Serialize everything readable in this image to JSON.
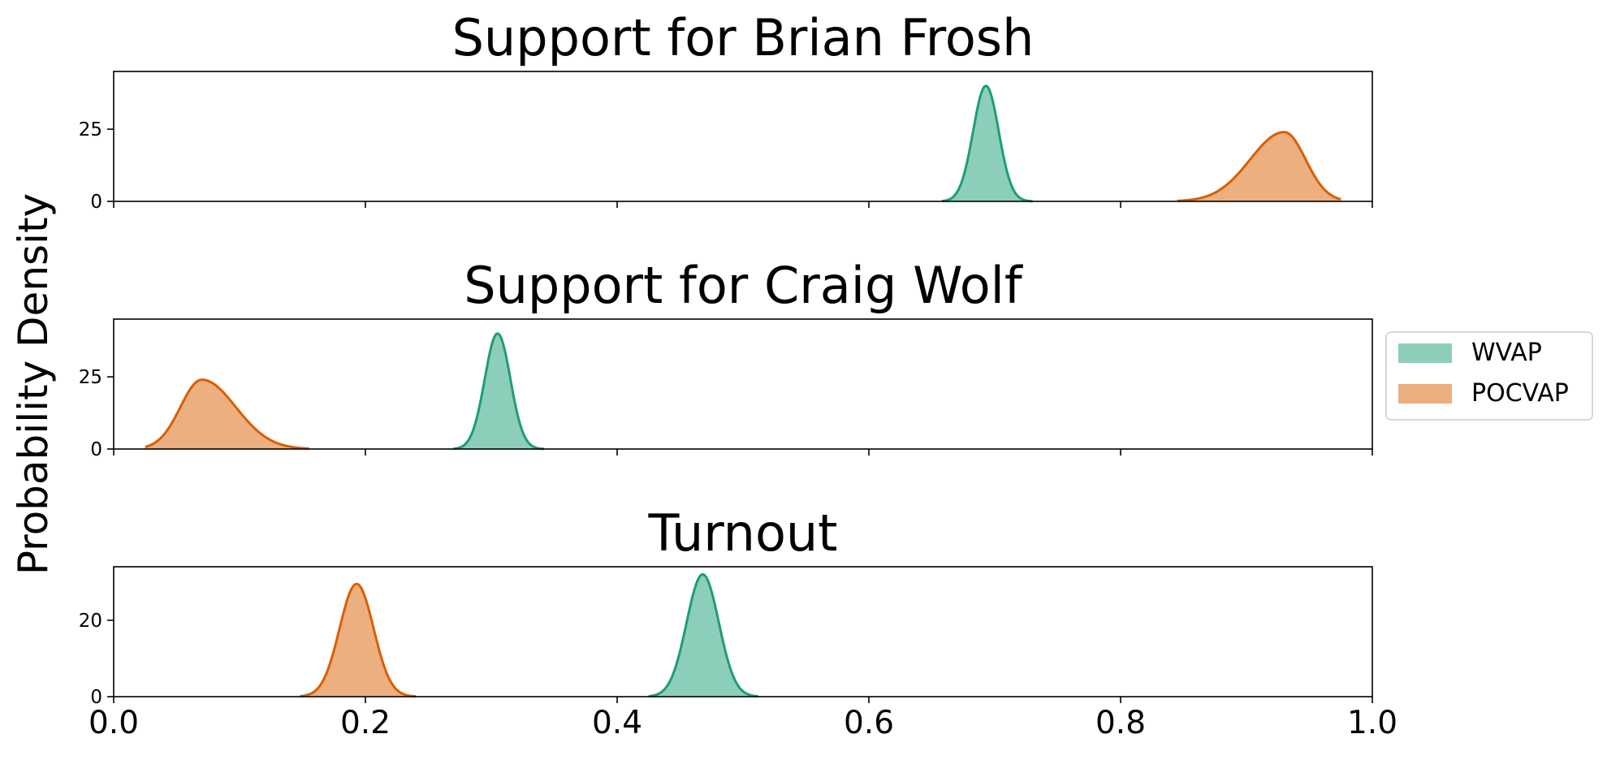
{
  "ylabel": "Probability Density",
  "legend": {
    "placement": "right",
    "entries": [
      {
        "name": "WVAP",
        "color": "#1b9e77"
      },
      {
        "name": "POCVAP",
        "color": "#d95f02"
      }
    ]
  },
  "chart_data": [
    {
      "type": "area",
      "title": "Support for Brian Frosh",
      "xlim": [
        0.0,
        1.0
      ],
      "ylim": [
        0,
        45
      ],
      "yticks": [
        0,
        25
      ],
      "xticks": [
        0.0,
        0.2,
        0.4,
        0.6,
        0.8,
        1.0
      ],
      "show_xtick_labels": false,
      "series": [
        {
          "name": "WVAP",
          "color": "#1b9e77",
          "peak_x": 0.693,
          "peak_y": 40,
          "sd": 0.0102,
          "skew": 0,
          "range": [
            0.658,
            0.73
          ]
        },
        {
          "name": "POCVAP",
          "color": "#d95f02",
          "peak_x": 0.93,
          "peak_y": 24,
          "sd_left": 0.027,
          "sd_right": 0.017,
          "range": [
            0.845,
            0.975
          ]
        }
      ]
    },
    {
      "type": "area",
      "title": "Support for Craig Wolf",
      "xlim": [
        0.0,
        1.0
      ],
      "ylim": [
        0,
        45
      ],
      "yticks": [
        0,
        25
      ],
      "xticks": [
        0.0,
        0.2,
        0.4,
        0.6,
        0.8,
        1.0
      ],
      "show_xtick_labels": false,
      "series": [
        {
          "name": "WVAP",
          "color": "#1b9e77",
          "peak_x": 0.305,
          "peak_y": 40,
          "sd": 0.0102,
          "range": [
            0.27,
            0.342
          ]
        },
        {
          "name": "POCVAP",
          "color": "#d95f02",
          "peak_x": 0.07,
          "peak_y": 24,
          "sd_left": 0.017,
          "sd_right": 0.027,
          "range": [
            0.025,
            0.155
          ]
        }
      ]
    },
    {
      "type": "area",
      "title": "Turnout",
      "xlim": [
        0.0,
        1.0
      ],
      "ylim": [
        0,
        34
      ],
      "yticks": [
        0,
        20
      ],
      "xticks": [
        0.0,
        0.2,
        0.4,
        0.6,
        0.8,
        1.0
      ],
      "xticklabels": [
        "0.0",
        "0.2",
        "0.4",
        "0.6",
        "0.8",
        "1.0"
      ],
      "show_xtick_labels": true,
      "series": [
        {
          "name": "WVAP",
          "color": "#1b9e77",
          "peak_x": 0.468,
          "peak_y": 32,
          "sd": 0.0128,
          "range": [
            0.425,
            0.512
          ]
        },
        {
          "name": "POCVAP",
          "color": "#d95f02",
          "peak_x": 0.193,
          "peak_y": 29.5,
          "sd": 0.0135,
          "range": [
            0.148,
            0.24
          ]
        }
      ]
    }
  ]
}
